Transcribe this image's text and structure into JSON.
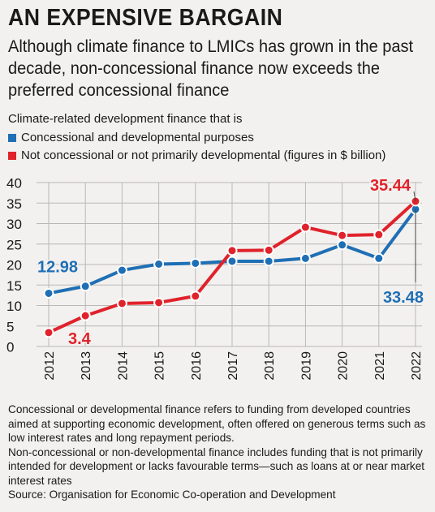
{
  "header": {
    "title": "AN EXPENSIVE BARGAIN",
    "subtitle": "Although climate finance to LMICs has grown in the past decade, non-concessional finance now exceeds the preferred concessional finance"
  },
  "intro": "Climate-related development finance that is",
  "legend": [
    {
      "label": "Concessional and developmental purposes",
      "color": "#1f6fb5"
    },
    {
      "label": "Not concessional or not primarily developmental (figures in $ billion)",
      "color": "#e0222b"
    }
  ],
  "chart_data": {
    "type": "line",
    "x": [
      "2012",
      "2013",
      "2014",
      "2015",
      "2016",
      "2017",
      "2018",
      "2019",
      "2020",
      "2021",
      "2022"
    ],
    "series": [
      {
        "name": "Concessional and developmental purposes",
        "color": "#1f6fb5",
        "values": [
          12.98,
          14.7,
          18.6,
          20.1,
          20.3,
          20.8,
          20.8,
          21.5,
          24.8,
          21.5,
          33.48
        ]
      },
      {
        "name": "Not concessional or not primarily developmental",
        "color": "#e0222b",
        "values": [
          3.4,
          7.5,
          10.5,
          10.7,
          12.3,
          23.4,
          23.5,
          29.1,
          27.1,
          27.3,
          35.44
        ]
      }
    ],
    "annotations": [
      {
        "text": "12.98",
        "series": 0,
        "index": 0
      },
      {
        "text": "3.4",
        "series": 1,
        "index": 0
      },
      {
        "text": "35.44",
        "series": 1,
        "index": 10
      },
      {
        "text": "33.48",
        "series": 0,
        "index": 10
      }
    ],
    "ylim": [
      0,
      40
    ],
    "yticks": [
      0,
      5,
      10,
      15,
      20,
      25,
      30,
      35,
      40
    ],
    "grid": true
  },
  "notes": [
    "Concessional or developmental finance refers to funding from developed countries aimed at supporting economic development, often offered on generous terms such as low interest rates and long repayment periods.",
    "Non-concessional or non-developmental finance includes funding that is not primarily intended for development or lacks favourable terms—such as loans at or near market interest rates",
    "Source: Organisation for Economic Co-operation and Development"
  ]
}
